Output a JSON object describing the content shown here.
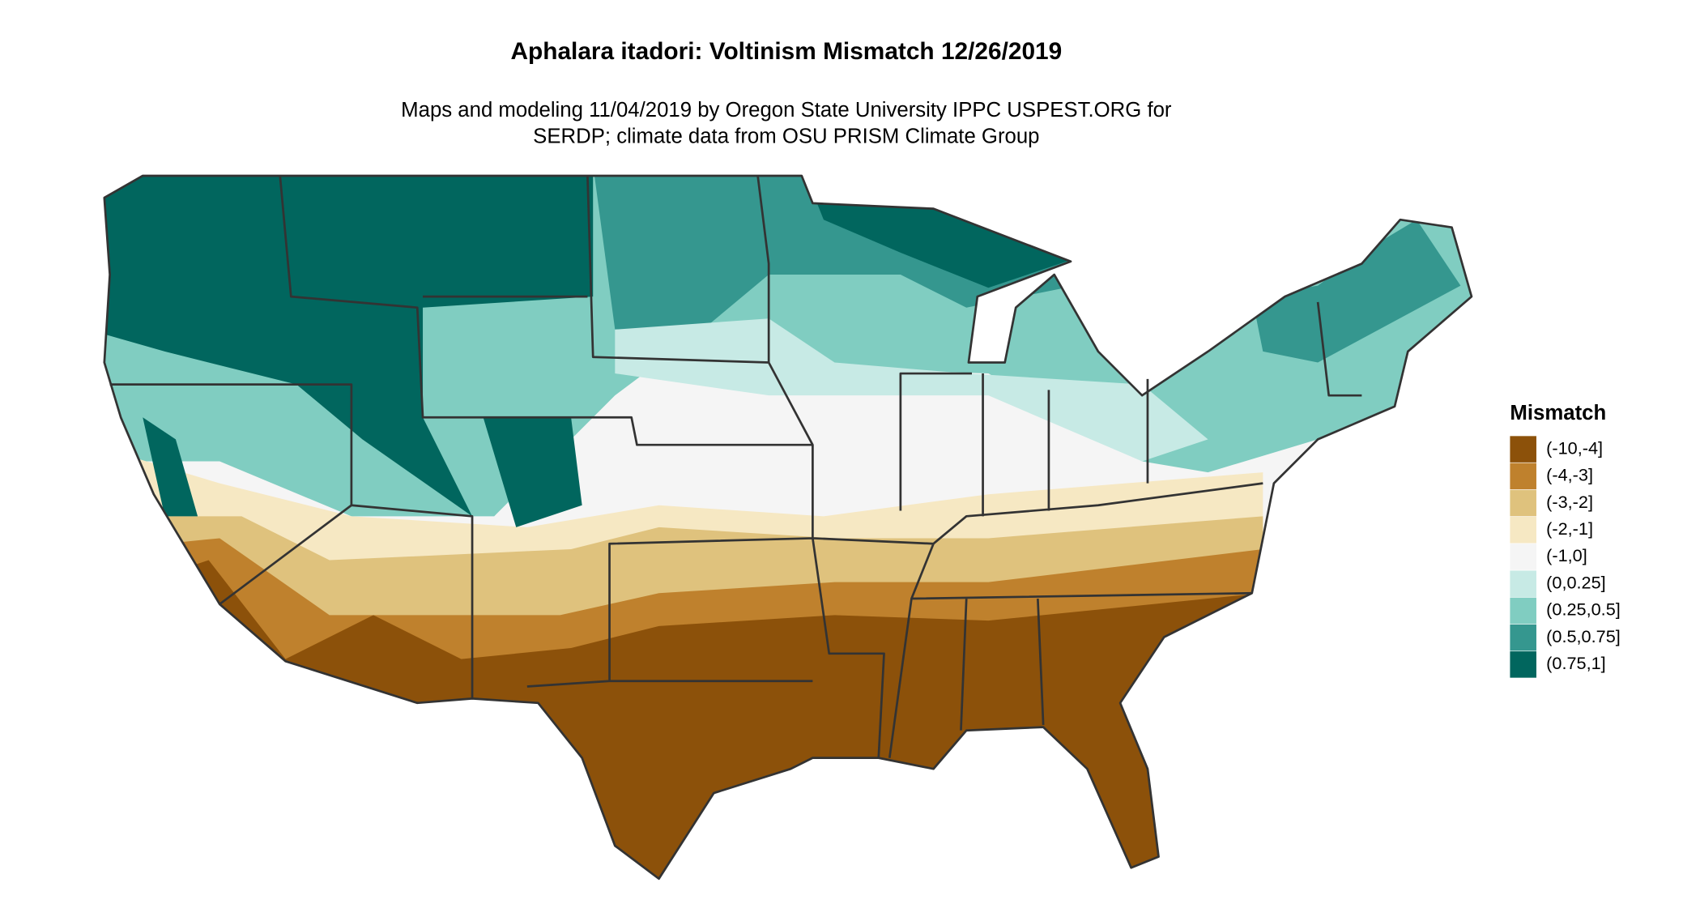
{
  "title": "Aphalara itadori: Voltinism Mismatch 12/26/2019",
  "subtitle": [
    "Maps and modeling 11/04/2019 by Oregon State University IPPC USPEST.ORG for",
    "SERDP; climate data from OSU PRISM Climate Group"
  ],
  "legend": {
    "title": "Mismatch",
    "items": [
      {
        "label": "(-10,-4]",
        "color": "#8c510a"
      },
      {
        "label": "(-4,-3]",
        "color": "#bf812d"
      },
      {
        "label": "(-3,-2]",
        "color": "#dfc27d"
      },
      {
        "label": "(-2,-1]",
        "color": "#f6e8c3"
      },
      {
        "label": "(-1,0]",
        "color": "#f5f5f5"
      },
      {
        "label": "(0,0.25]",
        "color": "#c7eae5"
      },
      {
        "label": "(0.25,0.5]",
        "color": "#80cdc1"
      },
      {
        "label": "(0.5,0.75]",
        "color": "#35978f"
      },
      {
        "label": "(0.75,1]",
        "color": "#01665e"
      }
    ]
  }
}
